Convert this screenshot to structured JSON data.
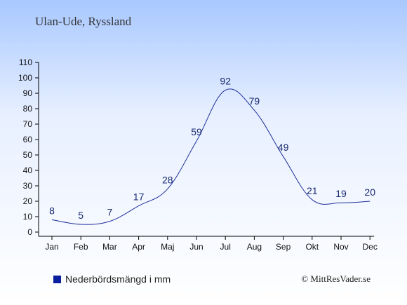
{
  "header": {
    "title": "Ulan-Ude, Ryssland"
  },
  "legend": {
    "label": "Nederbördsmängd i mm"
  },
  "footer": {
    "copyright": "© MittResVader.se"
  },
  "colors": {
    "line": "#1f2f9a",
    "axis": "#000000",
    "legend_swatch": "#0a1f9e",
    "label": "#1a2a70"
  },
  "chart_data": {
    "type": "line",
    "categories": [
      "Jan",
      "Feb",
      "Mar",
      "Apr",
      "Maj",
      "Jun",
      "Jul",
      "Aug",
      "Sep",
      "Okt",
      "Nov",
      "Dec"
    ],
    "series": [
      {
        "name": "Nederbördsmängd i mm",
        "values": [
          8,
          5,
          7,
          17,
          28,
          59,
          92,
          79,
          49,
          21,
          19,
          20
        ]
      }
    ],
    "ylim": [
      0,
      110
    ],
    "yticks": [
      0,
      10,
      20,
      30,
      40,
      50,
      60,
      70,
      80,
      90,
      100,
      110
    ],
    "grid": false,
    "legend_position": "bottom-left"
  }
}
